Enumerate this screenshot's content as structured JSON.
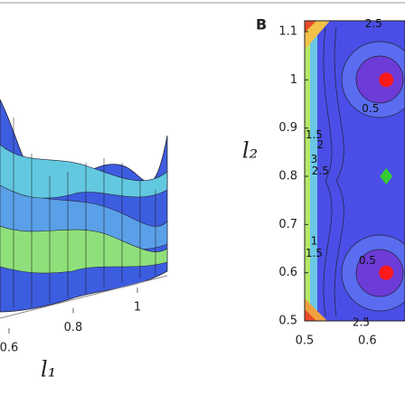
{
  "chart_data": [
    {
      "type": "surface",
      "xlabel": "l₁",
      "xlim": [
        0.6,
        1
      ],
      "xticks": [
        0.6,
        0.8,
        1
      ]
    },
    {
      "type": "contour",
      "panel": "B",
      "ylabel": "l₂",
      "xlim": [
        0.5,
        0.66
      ],
      "xticks": [
        0.5,
        0.6
      ],
      "ylim": [
        0.5,
        1.1
      ],
      "yticks": [
        0.5,
        0.6,
        0.7,
        0.8,
        0.9,
        1,
        1.1
      ],
      "annotations": [
        {
          "text": "2.5",
          "x": 0.61,
          "y": 1.116
        },
        {
          "text": "2.5",
          "x": 0.59,
          "y": 0.496
        },
        {
          "text": "1.5",
          "x": 0.515,
          "y": 0.885
        },
        {
          "text": "2",
          "x": 0.525,
          "y": 0.865
        },
        {
          "text": "3",
          "x": 0.515,
          "y": 0.835
        },
        {
          "text": "2.5",
          "x": 0.525,
          "y": 0.81
        },
        {
          "text": "1",
          "x": 0.515,
          "y": 0.665
        },
        {
          "text": "1.5",
          "x": 0.515,
          "y": 0.64
        },
        {
          "text": "0.5",
          "x": 0.605,
          "y": 0.94
        },
        {
          "text": "0.5",
          "x": 0.6,
          "y": 0.625
        }
      ],
      "markers": [
        {
          "x": 0.63,
          "y": 1.0,
          "color": "#ff1a1a"
        },
        {
          "x": 0.63,
          "y": 0.8,
          "color": "#33cc33"
        },
        {
          "x": 0.63,
          "y": 0.6,
          "color": "#ff1a1a"
        }
      ]
    }
  ]
}
